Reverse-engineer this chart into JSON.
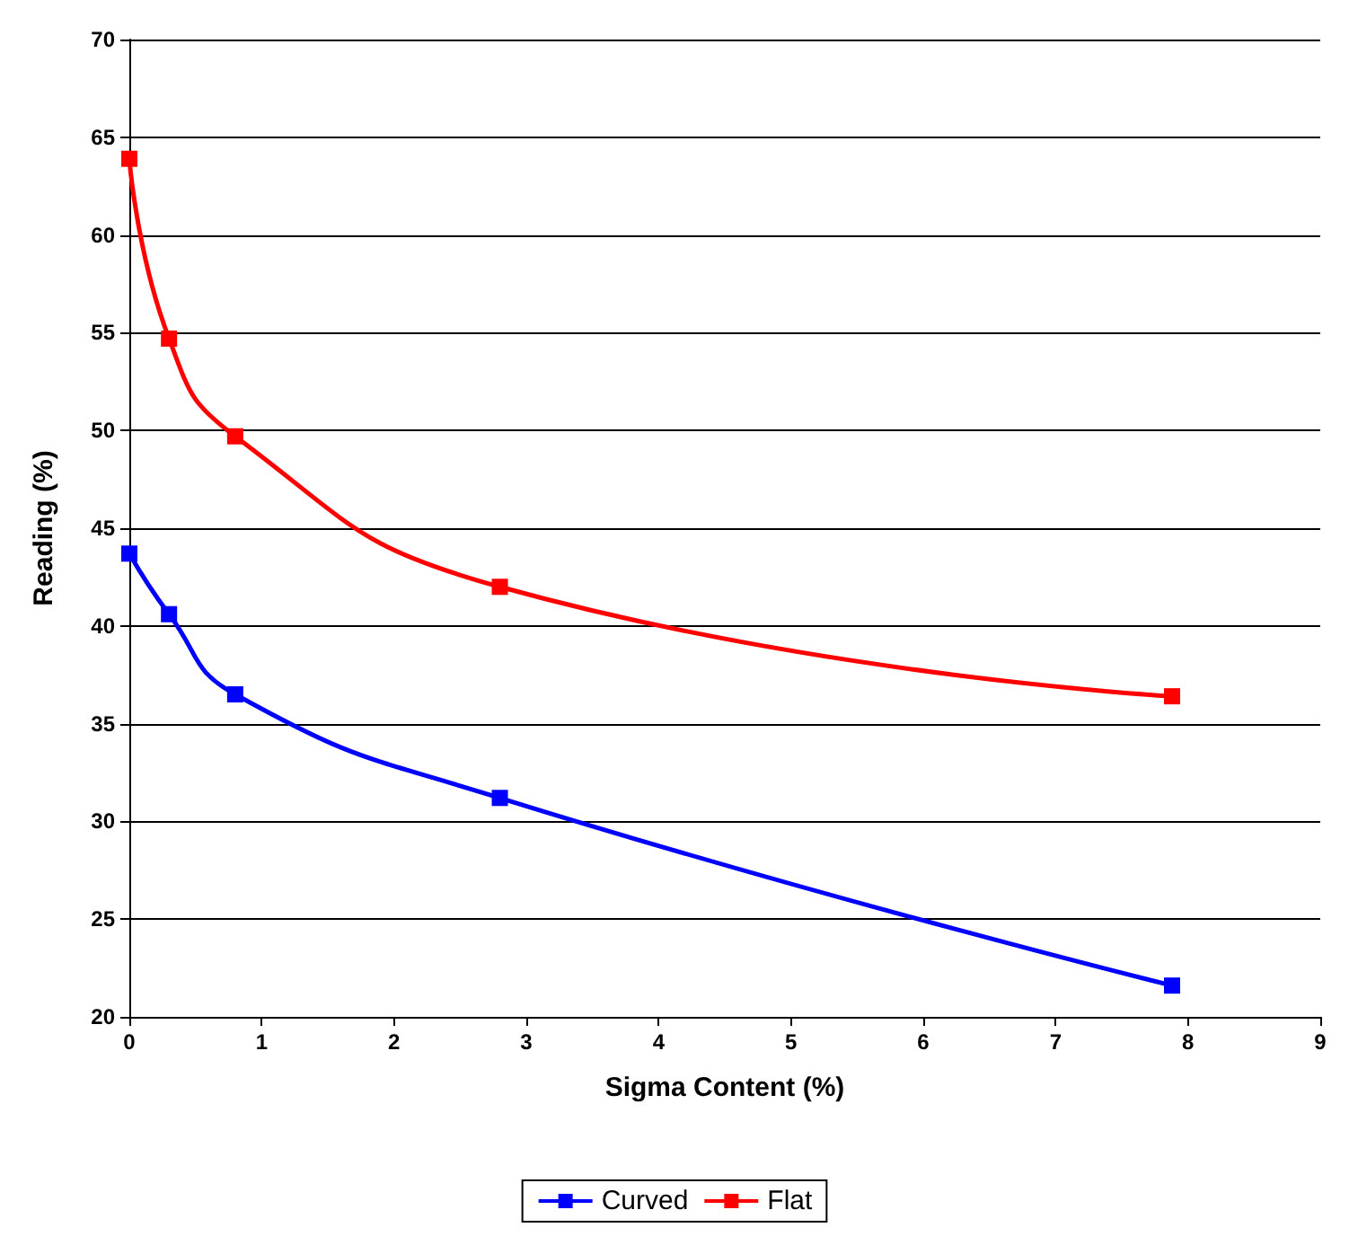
{
  "chart_data": {
    "type": "line",
    "xlabel": "Sigma Content (%)",
    "ylabel": "Reading (%)",
    "x": [
      0,
      0.3,
      0.8,
      2.8,
      7.88
    ],
    "series": [
      {
        "name": "Curved",
        "color": "#0000ff",
        "values": [
          43.7,
          40.6,
          36.5,
          31.2,
          21.6
        ]
      },
      {
        "name": "Flat",
        "color": "#ff0000",
        "values": [
          63.9,
          54.7,
          49.7,
          42.0,
          36.4
        ]
      }
    ],
    "xlim": [
      0,
      9
    ],
    "xticks": [
      0,
      1,
      2,
      3,
      4,
      5,
      6,
      7,
      8,
      9
    ],
    "ylim": [
      20,
      70
    ],
    "yticks": [
      20,
      25,
      30,
      35,
      40,
      45,
      50,
      55,
      60,
      65,
      70
    ],
    "grid": "y",
    "legend": "bottom",
    "marker": "square",
    "line_style": "solid"
  }
}
